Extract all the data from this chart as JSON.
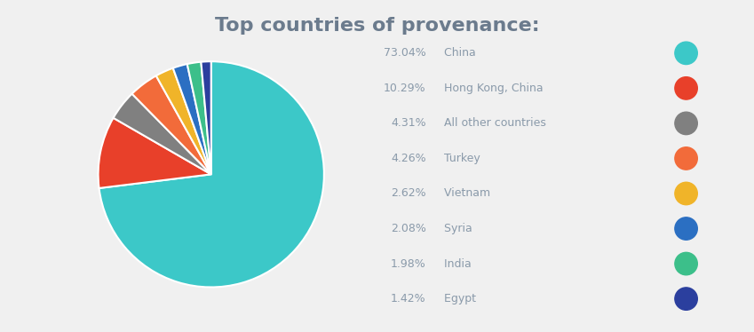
{
  "title": "Top countries of provenance:",
  "title_color": "#6b7b8d",
  "title_fontsize": 16,
  "background_color": "#f0f0f0",
  "labels": [
    "China",
    "Hong Kong, China",
    "All other countries",
    "Turkey",
    "Vietnam",
    "Syria",
    "India",
    "Egypt"
  ],
  "values": [
    73.04,
    10.29,
    4.31,
    4.26,
    2.62,
    2.08,
    1.98,
    1.42
  ],
  "colors": [
    "#3cc8c8",
    "#e8402a",
    "#808080",
    "#f26b3a",
    "#f0b429",
    "#2b6fc2",
    "#3cbf8a",
    "#2b3f9e"
  ],
  "legend_pct": [
    "73.04%",
    "10.29%",
    "4.31%",
    "4.26%",
    "2.62%",
    "2.08%",
    "1.98%",
    "1.42%"
  ],
  "startangle": 90,
  "wedge_edge_color": "white"
}
